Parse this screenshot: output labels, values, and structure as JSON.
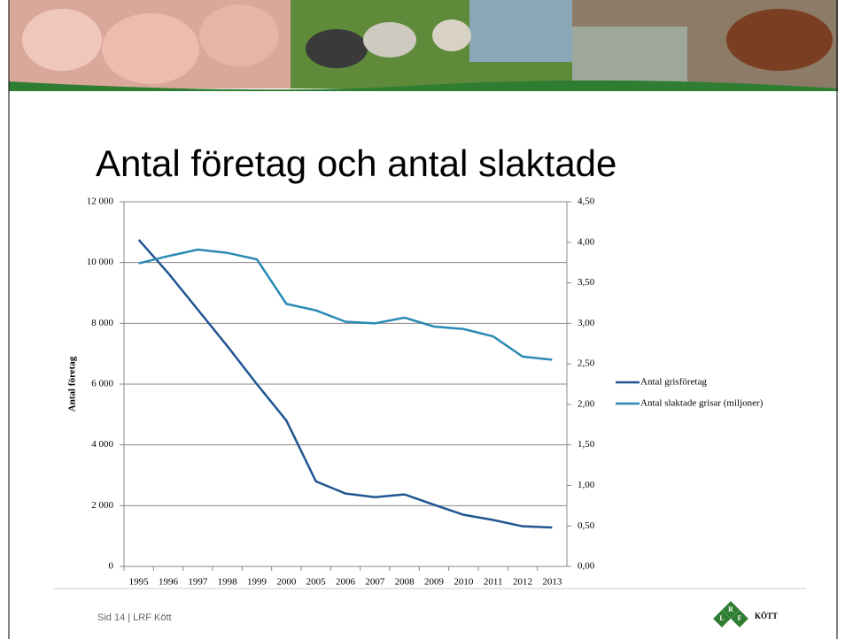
{
  "chart_data": {
    "type": "line",
    "title": "Antal företag och antal slaktade",
    "y_label": "Antal företag",
    "categories": [
      "1995",
      "1996",
      "1997",
      "1998",
      "1999",
      "2000",
      "2005",
      "2006",
      "2007",
      "2008",
      "2009",
      "2010",
      "2011",
      "2012",
      "2013"
    ],
    "series": [
      {
        "name": "Antal grisföretag",
        "color": "#1f5591",
        "axis": "y",
        "values": [
          10750,
          9650,
          8450,
          7250,
          6000,
          4800,
          2800,
          2400,
          2280,
          2370,
          2030,
          1700,
          1530,
          1320,
          1280
        ]
      },
      {
        "name": "Antal slaktade grisar (miljoner)",
        "color": "#2a8ab4",
        "axis": "y2",
        "values": [
          3.74,
          3.83,
          3.91,
          3.87,
          3.79,
          3.24,
          3.16,
          3.02,
          3.0,
          3.07,
          2.96,
          2.93,
          2.84,
          2.59,
          2.55
        ]
      }
    ],
    "ylim": [
      0,
      12000
    ],
    "yticks": [
      0,
      {
        "value": 2000,
        "label": "2 000"
      },
      {
        "value": 4000,
        "label": "4 000"
      },
      {
        "value": 6000,
        "label": "6 000"
      },
      {
        "value": 8000,
        "label": "8 000"
      },
      {
        "value": 10000,
        "label": "10 000"
      },
      {
        "value": 12000,
        "label": "12 000"
      }
    ],
    "y2lim": [
      0,
      4.5
    ],
    "y2ticks": [
      {
        "value": 0,
        "label": "0,00"
      },
      {
        "value": 0.5,
        "label": "0,50"
      },
      {
        "value": 1,
        "label": "1,00"
      },
      {
        "value": 1.5,
        "label": "1,50"
      },
      {
        "value": 2,
        "label": "2,00"
      },
      {
        "value": 2.5,
        "label": "2,50"
      },
      {
        "value": 3,
        "label": "3,00"
      },
      {
        "value": 3.5,
        "label": "3,50"
      },
      {
        "value": 4,
        "label": "4,00"
      },
      {
        "value": 4.5,
        "label": "4,50"
      }
    ],
    "grid": true,
    "legend": "right"
  },
  "footer": "Sid 14 | LRF Kött",
  "logo": {
    "letters": [
      "L",
      "R",
      "F"
    ],
    "text": "KÖTT"
  }
}
